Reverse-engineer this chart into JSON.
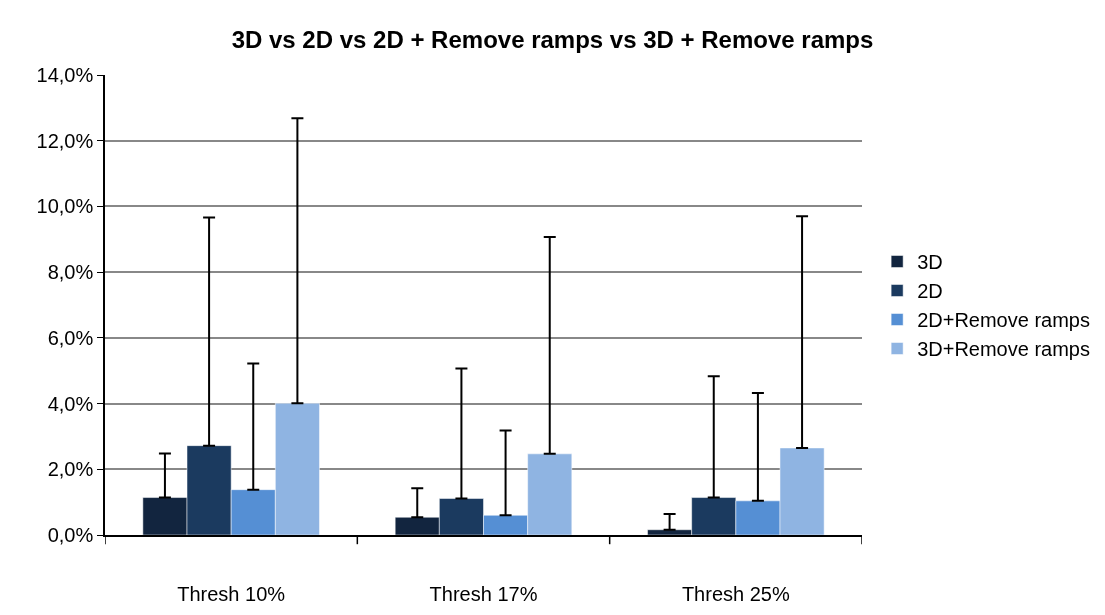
{
  "chart_data": {
    "type": "bar",
    "title": "3D vs 2D vs 2D + Remove ramps vs 3D + Remove ramps",
    "categories": [
      "Thresh 10%",
      "Thresh 17%",
      "Thresh 25%"
    ],
    "series": [
      {
        "name": "3D",
        "color": "#12253f",
        "values": [
          1.14,
          0.54,
          0.16
        ],
        "errors": [
          [
            1.14,
            2.48
          ],
          [
            0.54,
            1.42
          ],
          [
            0.16,
            0.64
          ]
        ]
      },
      {
        "name": "2D",
        "color": "#1b3a5f",
        "values": [
          2.72,
          1.11,
          1.14
        ],
        "errors": [
          [
            2.72,
            9.66
          ],
          [
            1.11,
            5.07
          ],
          [
            1.14,
            4.83
          ]
        ]
      },
      {
        "name": "2D+Remove ramps",
        "color": "#558fd4",
        "values": [
          1.38,
          0.6,
          1.04
        ],
        "errors": [
          [
            1.38,
            5.22
          ],
          [
            0.6,
            3.18
          ],
          [
            1.04,
            4.32
          ]
        ]
      },
      {
        "name": "3D+Remove ramps",
        "color": "#8fb4e2",
        "values": [
          4.01,
          2.47,
          2.65
        ],
        "errors": [
          [
            4.01,
            12.68
          ],
          [
            2.47,
            9.07
          ],
          [
            2.65,
            9.7
          ]
        ]
      }
    ],
    "ylim": [
      0,
      14
    ],
    "yticks": [
      {
        "value": 0,
        "label": "0,0%"
      },
      {
        "value": 2,
        "label": "2,0%"
      },
      {
        "value": 4,
        "label": "4,0%"
      },
      {
        "value": 6,
        "label": "6,0%"
      },
      {
        "value": 8,
        "label": "8,0%"
      },
      {
        "value": 10,
        "label": "10,0%"
      },
      {
        "value": 12,
        "label": "12,0%"
      },
      {
        "value": 14,
        "label": "14,0%"
      }
    ],
    "grid": "y",
    "legend": "right"
  }
}
